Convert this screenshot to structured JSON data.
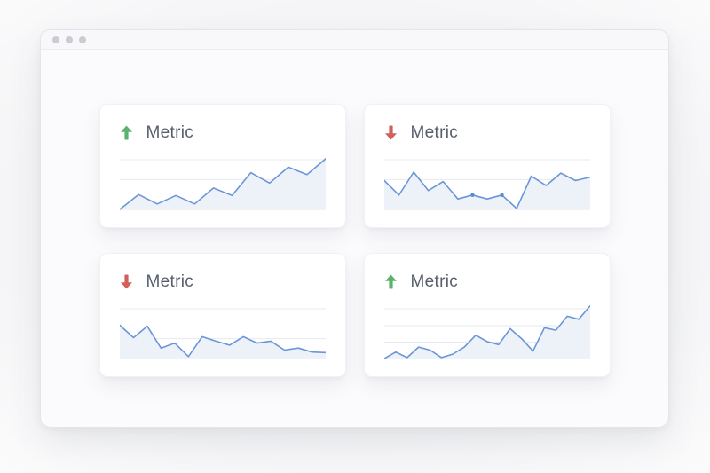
{
  "colors": {
    "trend_up": "#5cb26d",
    "trend_down": "#d25f5b",
    "line": "#6b95d8",
    "marker": "#5e8bd3",
    "area": "#edf1f8",
    "gridline": "#e7e9ee",
    "baseline": "#e2e4ea",
    "label": "#575f6d",
    "control_dot": "#cbccd2"
  },
  "window": {
    "titlebar": {
      "control_dots": 3
    }
  },
  "cards": [
    {
      "position": "top-left",
      "label": "Metric",
      "trend": "up",
      "chart_data": {
        "type": "line",
        "values": [
          0,
          30,
          11,
          28,
          11,
          43,
          28,
          74,
          53,
          85,
          70,
          102
        ],
        "gridline_levels": [
          0,
          60,
          100
        ],
        "markers": [],
        "ylim": [
          0,
          110
        ]
      }
    },
    {
      "position": "top-right",
      "label": "Metric",
      "trend": "down",
      "chart_data": {
        "type": "line",
        "values": [
          58,
          29,
          75,
          38,
          56,
          21,
          29,
          21,
          29,
          2,
          67,
          48,
          73,
          58,
          65
        ],
        "gridline_levels": [
          0,
          60,
          100
        ],
        "markers": [
          6,
          8
        ],
        "ylim": [
          0,
          110
        ]
      }
    },
    {
      "position": "bottom-left",
      "label": "Metric",
      "trend": "down",
      "chart_data": {
        "type": "line",
        "values": [
          67,
          42,
          65,
          21,
          31,
          4,
          44,
          35,
          27,
          44,
          31,
          35,
          17,
          21,
          13,
          12
        ],
        "gridline_levels": [
          0,
          40,
          100
        ],
        "markers": [],
        "ylim": [
          0,
          110
        ]
      }
    },
    {
      "position": "bottom-right",
      "label": "Metric",
      "trend": "up",
      "chart_data": {
        "type": "line",
        "values": [
          0,
          13,
          2,
          23,
          17,
          2,
          9,
          23,
          47,
          34,
          28,
          60,
          40,
          15,
          62,
          57,
          85,
          79,
          106
        ],
        "gridline_levels": [
          0,
          33,
          66,
          100
        ],
        "markers": [],
        "ylim": [
          0,
          110
        ]
      }
    }
  ]
}
